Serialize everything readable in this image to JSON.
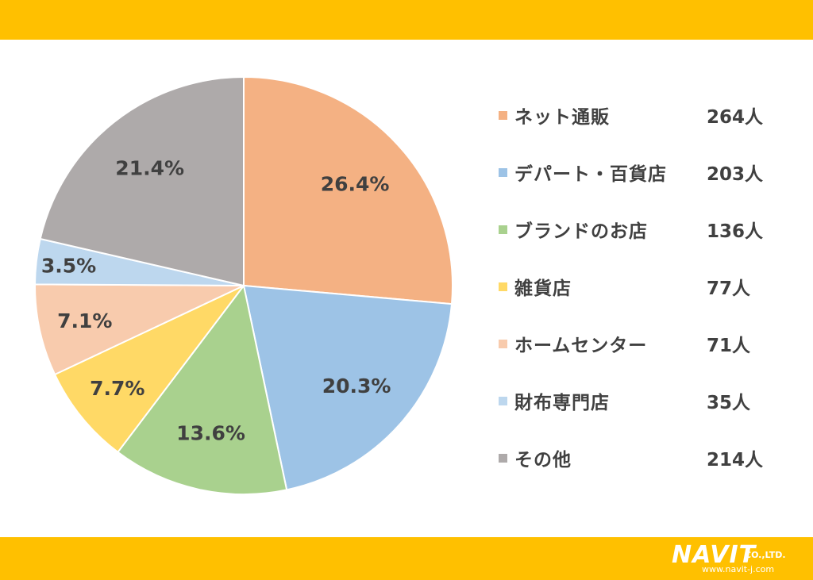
{
  "chart_data": {
    "type": "pie",
    "categories": [
      "ネット通販",
      "デパート・百貨店",
      "ブランドのお店",
      "雑貨店",
      "ホームセンター",
      "財布専門店",
      "その他"
    ],
    "values": [
      26.4,
      20.3,
      13.6,
      7.7,
      7.1,
      3.5,
      21.4
    ],
    "value_labels": [
      "26.4%",
      "20.3%",
      "13.6%",
      "7.7%",
      "7.1%",
      "3.5%",
      "21.4%"
    ],
    "counts": [
      "264人",
      "203人",
      "136人",
      "77人",
      "71人",
      "35人",
      "214人"
    ],
    "colors": [
      "#F4B183",
      "#9DC3E6",
      "#A9D18E",
      "#FFD966",
      "#F8CBAD",
      "#BDD7EE",
      "#AEAAAA"
    ],
    "start_angle": "12 o'clock",
    "direction": "clockwise",
    "legend_position": "right"
  },
  "theme": {
    "band_color": "#FFC000",
    "text_color": "#404040"
  },
  "logo": {
    "main": "NAVIT",
    "suffix": "CO.,LTD.",
    "url": "www.navit-j.com"
  }
}
